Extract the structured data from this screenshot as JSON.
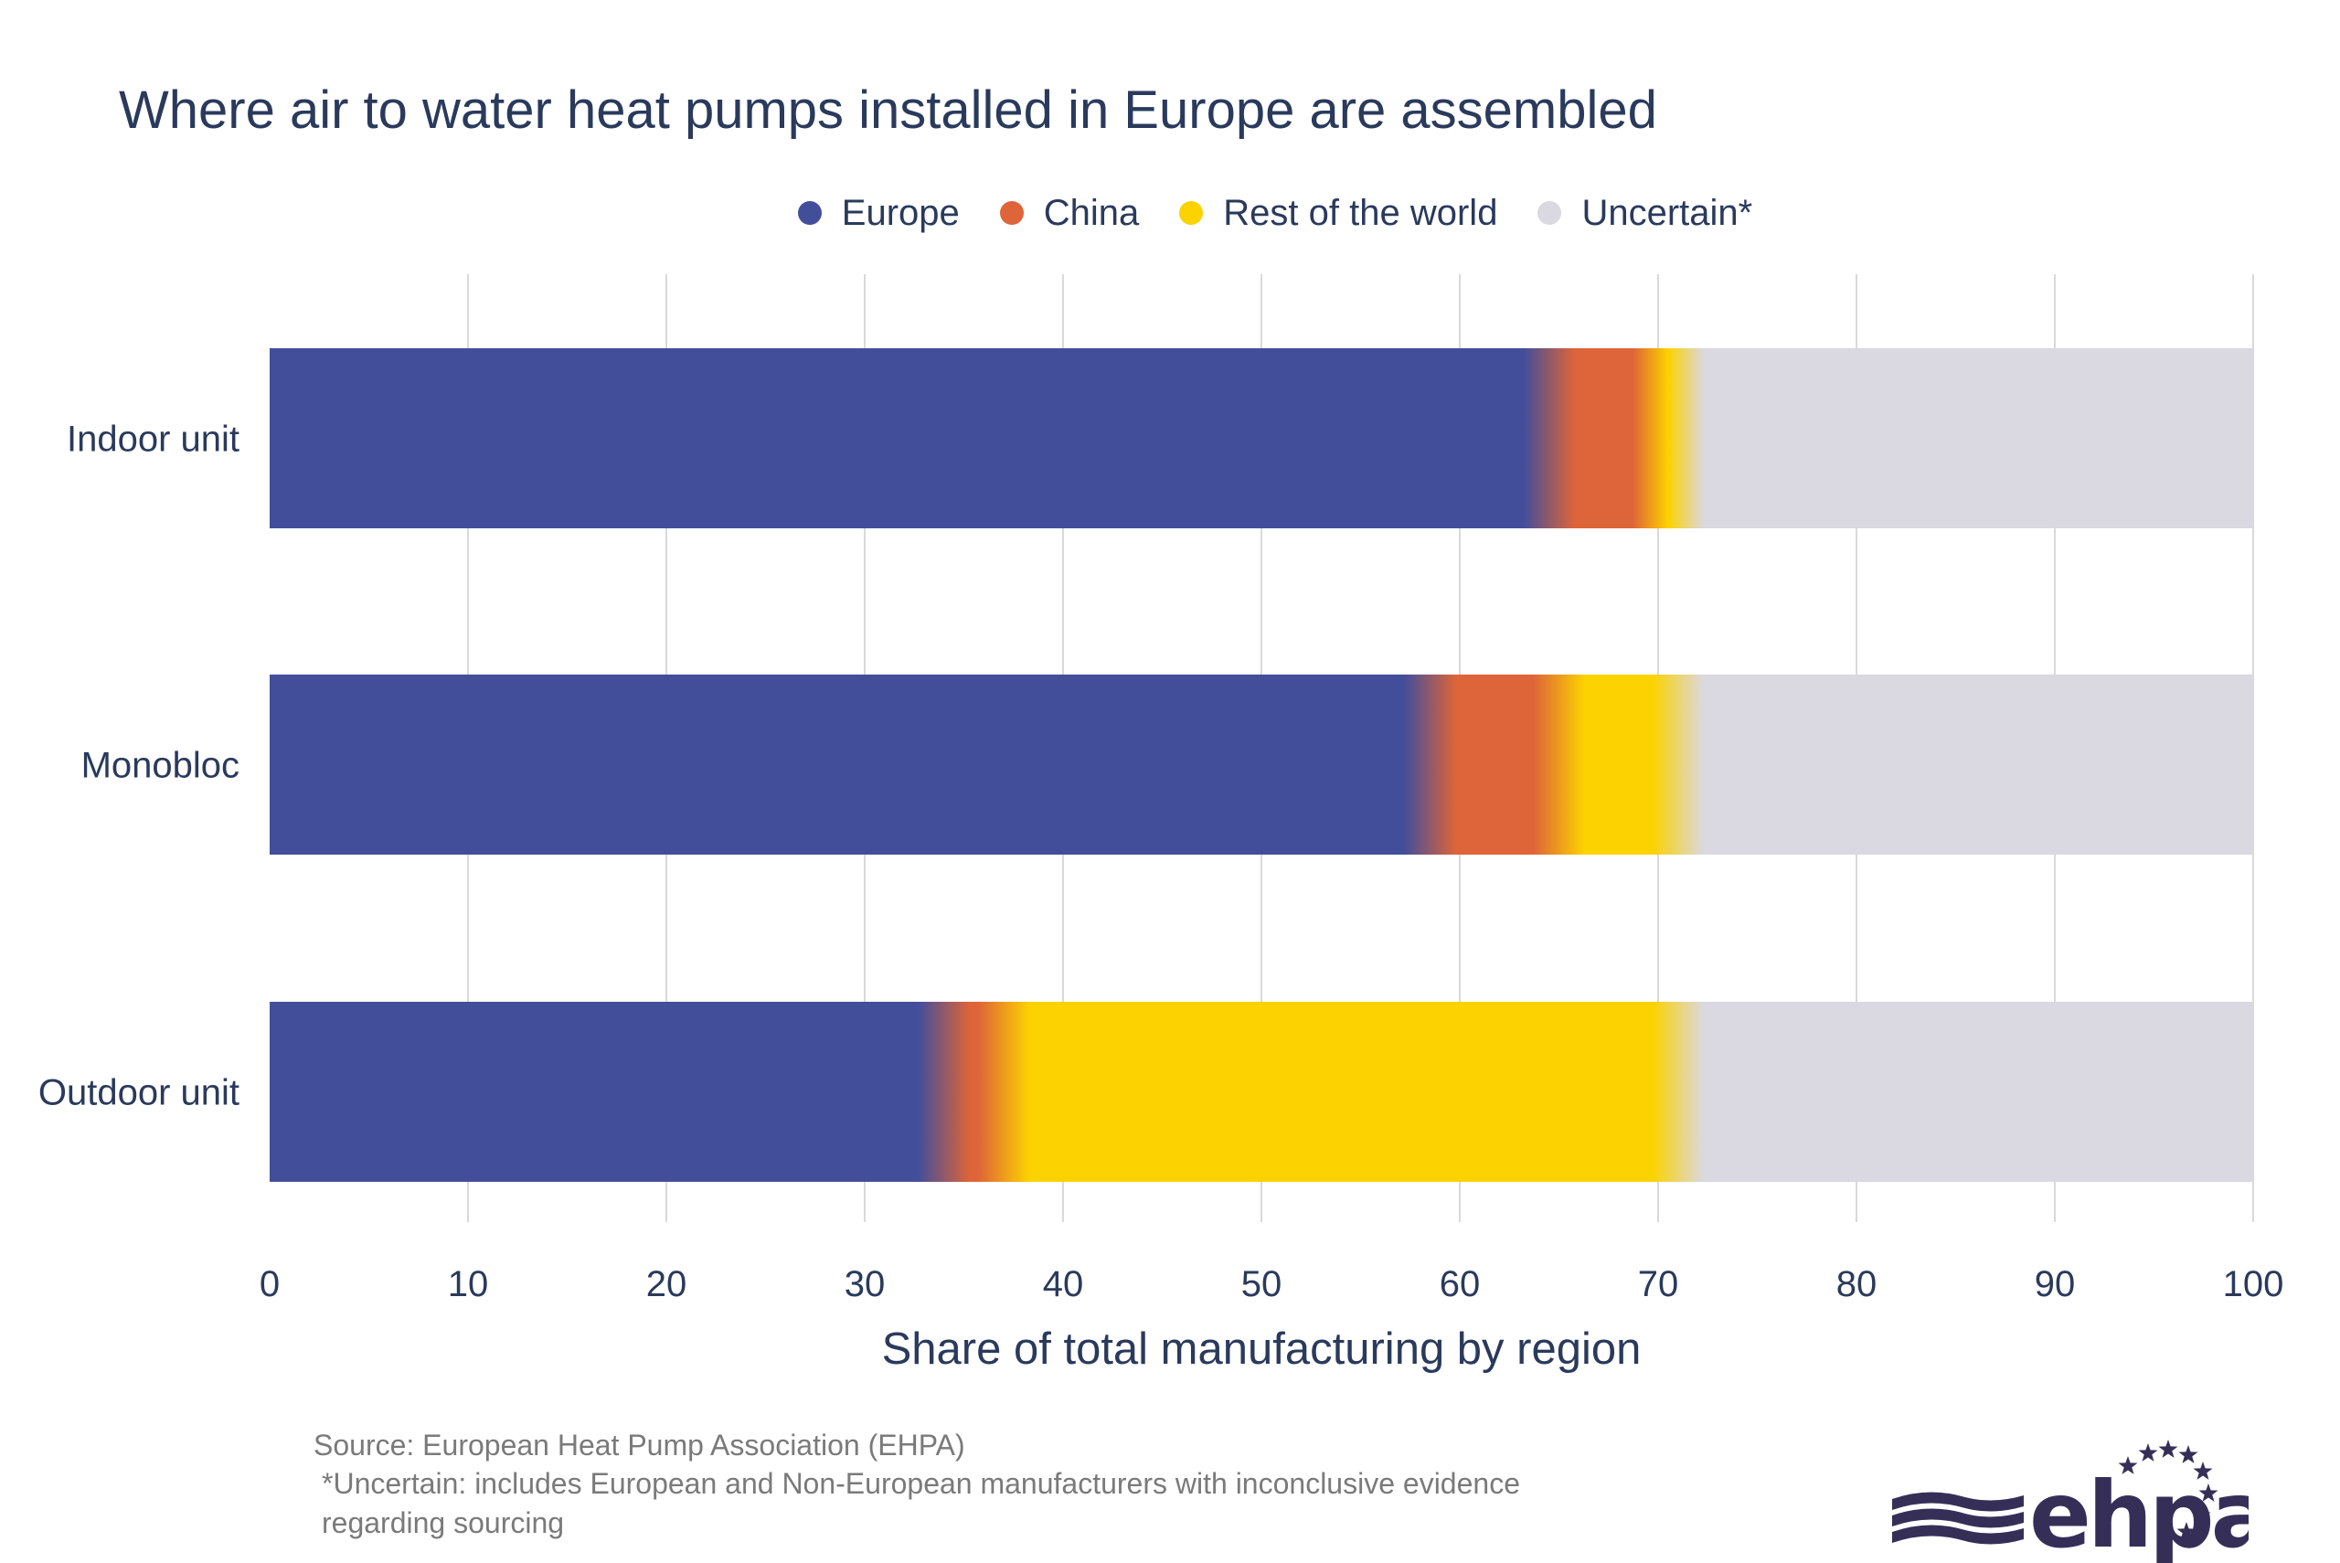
{
  "chart_data": {
    "type": "bar",
    "orientation": "horizontal",
    "stacked": true,
    "title": "Where air to water heat pumps installed in Europe are assembled",
    "xlabel": "Share of total manufacturing by region",
    "ylabel": "",
    "xlim": [
      0,
      100
    ],
    "xticks": [
      0,
      10,
      20,
      30,
      40,
      50,
      60,
      70,
      80,
      90,
      100
    ],
    "grid": "vertical",
    "legend_position": "top",
    "categories": [
      "Indoor unit",
      "Monobloc",
      "Outdoor unit"
    ],
    "series": [
      {
        "name": "Europe",
        "color": "#434e9b",
        "values": [
          64.5,
          58.5,
          34
        ]
      },
      {
        "name": "China",
        "color": "#de6439",
        "values": [
          5.5,
          6.5,
          3
        ]
      },
      {
        "name": "Rest of the world",
        "color": "#fcd200",
        "values": [
          1,
          6,
          34
        ]
      },
      {
        "name": "Uncertain*",
        "color": "#dad8e0",
        "values": [
          29,
          29,
          29
        ]
      }
    ]
  },
  "footer": {
    "source": "Source: European Heat Pump Association (EHPA)",
    "note_line1": "*Uncertain: includes European and Non-European manufacturers with inconclusive evidence",
    "note_line2": "regarding sourcing"
  },
  "logo": {
    "text": "ehpa",
    "color": "#352f58"
  }
}
